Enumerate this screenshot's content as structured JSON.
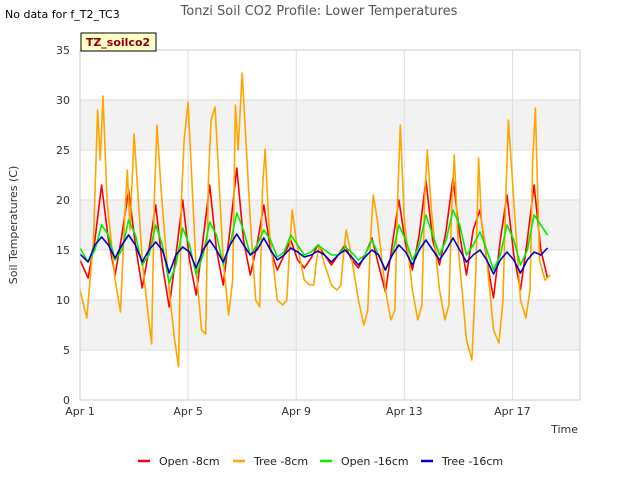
{
  "title": "Tonzi Soil CO2 Profile: Lower Temperatures",
  "nodata_text": "No data for f_T2_TC3",
  "tag_label": "TZ_soilco2",
  "chart_data": {
    "type": "line",
    "xlabel": "Time",
    "ylabel": "Soil Temperatures (C)",
    "xlim": [
      0,
      18.5
    ],
    "ylim": [
      0,
      35
    ],
    "x_ticks": [
      {
        "value": 0,
        "label": "Apr 1"
      },
      {
        "value": 4,
        "label": "Apr 5"
      },
      {
        "value": 8,
        "label": "Apr 9"
      },
      {
        "value": 12,
        "label": "Apr 13"
      },
      {
        "value": 16,
        "label": "Apr 17"
      }
    ],
    "y_ticks": [
      0,
      5,
      10,
      15,
      20,
      25,
      30,
      35
    ],
    "grid": true,
    "legend_position": "bottom",
    "series": [
      {
        "name": "Open -8cm",
        "color": "#ff0000",
        "x": [
          0.0,
          0.3,
          0.55,
          0.8,
          1.05,
          1.3,
          1.55,
          1.8,
          2.05,
          2.3,
          2.55,
          2.8,
          3.05,
          3.3,
          3.55,
          3.8,
          4.05,
          4.3,
          4.55,
          4.8,
          5.05,
          5.3,
          5.55,
          5.8,
          6.05,
          6.3,
          6.55,
          6.8,
          7.05,
          7.3,
          7.55,
          7.8,
          8.05,
          8.3,
          8.55,
          8.8,
          9.05,
          9.3,
          9.55,
          9.8,
          10.05,
          10.3,
          10.55,
          10.8,
          11.05,
          11.3,
          11.55,
          11.8,
          12.05,
          12.3,
          12.55,
          12.8,
          13.05,
          13.3,
          13.55,
          13.8,
          14.05,
          14.3,
          14.55,
          14.8,
          15.05,
          15.3,
          15.55,
          15.8,
          16.05,
          16.3,
          16.55,
          16.8,
          17.05,
          17.3
        ],
        "y": [
          14.0,
          12.2,
          16.0,
          21.5,
          16.0,
          12.5,
          16.5,
          21.0,
          15.5,
          11.2,
          15.0,
          19.5,
          13.5,
          9.3,
          14.5,
          20.0,
          14.0,
          10.5,
          16.0,
          21.5,
          15.0,
          11.5,
          17.0,
          23.2,
          16.0,
          12.5,
          15.5,
          19.5,
          15.0,
          13.0,
          14.5,
          16.0,
          14.0,
          13.2,
          14.2,
          15.5,
          14.5,
          13.5,
          14.5,
          15.5,
          14.0,
          13.2,
          14.5,
          16.2,
          13.5,
          10.8,
          15.5,
          20.0,
          15.5,
          13.0,
          16.5,
          22.0,
          16.0,
          13.5,
          17.0,
          22.2,
          16.5,
          12.5,
          17.0,
          19.0,
          14.0,
          10.2,
          16.0,
          20.5,
          14.5,
          11.0,
          16.0,
          21.5,
          15.0,
          12.2
        ]
      },
      {
        "name": "Tree -8cm",
        "color": "#ffa500",
        "x": [
          0.0,
          0.25,
          0.5,
          0.65,
          0.75,
          0.85,
          1.0,
          1.3,
          1.5,
          1.65,
          1.75,
          1.85,
          2.0,
          2.3,
          2.5,
          2.65,
          2.75,
          2.85,
          3.0,
          3.3,
          3.5,
          3.65,
          3.75,
          3.85,
          4.0,
          4.3,
          4.5,
          4.65,
          4.75,
          4.85,
          5.0,
          5.3,
          5.5,
          5.65,
          5.75,
          5.85,
          6.0,
          6.3,
          6.5,
          6.65,
          6.75,
          6.85,
          7.0,
          7.3,
          7.5,
          7.65,
          7.75,
          7.85,
          8.0,
          8.3,
          8.5,
          8.65,
          8.75,
          8.85,
          9.0,
          9.3,
          9.5,
          9.65,
          9.75,
          9.85,
          10.0,
          10.3,
          10.5,
          10.65,
          10.75,
          10.85,
          11.0,
          11.3,
          11.5,
          11.65,
          11.75,
          11.85,
          12.0,
          12.3,
          12.5,
          12.65,
          12.75,
          12.85,
          13.0,
          13.3,
          13.5,
          13.65,
          13.75,
          13.85,
          14.0,
          14.3,
          14.5,
          14.65,
          14.75,
          14.85,
          15.0,
          15.3,
          15.5,
          15.65,
          15.75,
          15.85,
          16.0,
          16.3,
          16.5,
          16.65,
          16.75,
          16.85,
          17.0,
          17.2,
          17.4
        ],
        "y": [
          11.0,
          8.2,
          16.0,
          29.0,
          24.0,
          30.4,
          20.0,
          12.0,
          8.8,
          18.0,
          23.0,
          17.0,
          26.6,
          14.0,
          9.0,
          5.6,
          20.0,
          27.5,
          21.0,
          11.0,
          6.0,
          3.3,
          20.0,
          26.0,
          29.8,
          13.0,
          7.0,
          6.6,
          22.0,
          28.0,
          29.3,
          14.0,
          8.5,
          12.0,
          29.5,
          25.0,
          32.7,
          18.0,
          10.0,
          9.3,
          21.0,
          25.1,
          17.0,
          10.0,
          9.5,
          10.0,
          15.0,
          19.0,
          16.0,
          12.0,
          11.5,
          11.5,
          14.0,
          15.5,
          14.0,
          11.5,
          11.0,
          11.5,
          14.5,
          17.0,
          15.0,
          10.0,
          7.5,
          9.0,
          16.0,
          20.5,
          18.0,
          11.0,
          8.0,
          9.0,
          20.0,
          27.5,
          18.0,
          11.0,
          8.0,
          9.5,
          20.0,
          25.0,
          19.0,
          11.0,
          8.0,
          9.5,
          19.0,
          24.5,
          15.0,
          6.0,
          4.0,
          13.0,
          24.2,
          18.0,
          15.5,
          7.0,
          5.7,
          10.0,
          20.0,
          28.0,
          22.0,
          10.0,
          8.2,
          11.0,
          24.0,
          29.2,
          14.0,
          12.0,
          12.5
        ]
      },
      {
        "name": "Open -16cm",
        "color": "#00ee00",
        "x": [
          0.0,
          0.3,
          0.55,
          0.8,
          1.05,
          1.3,
          1.55,
          1.8,
          2.05,
          2.3,
          2.55,
          2.8,
          3.05,
          3.3,
          3.55,
          3.8,
          4.05,
          4.3,
          4.55,
          4.8,
          5.05,
          5.3,
          5.55,
          5.8,
          6.05,
          6.3,
          6.55,
          6.8,
          7.05,
          7.3,
          7.55,
          7.8,
          8.05,
          8.3,
          8.55,
          8.8,
          9.05,
          9.3,
          9.55,
          9.8,
          10.05,
          10.3,
          10.55,
          10.8,
          11.05,
          11.3,
          11.55,
          11.8,
          12.05,
          12.3,
          12.55,
          12.8,
          13.05,
          13.3,
          13.55,
          13.8,
          14.05,
          14.3,
          14.55,
          14.8,
          15.05,
          15.3,
          15.55,
          15.8,
          16.05,
          16.3,
          16.55,
          16.8,
          17.05,
          17.3
        ],
        "y": [
          15.2,
          13.8,
          15.0,
          17.5,
          16.5,
          14.0,
          15.0,
          18.0,
          16.5,
          13.5,
          14.5,
          17.5,
          15.5,
          11.7,
          13.5,
          17.2,
          15.5,
          12.5,
          14.5,
          17.8,
          16.5,
          13.5,
          15.5,
          18.7,
          17.0,
          14.5,
          15.5,
          17.0,
          16.0,
          14.3,
          14.8,
          16.5,
          15.5,
          14.5,
          14.8,
          15.5,
          15.0,
          14.5,
          14.5,
          15.3,
          14.8,
          14.0,
          14.5,
          16.0,
          14.5,
          13.0,
          14.5,
          17.5,
          16.0,
          14.0,
          15.5,
          18.5,
          16.5,
          14.5,
          16.0,
          19.0,
          17.5,
          14.5,
          15.5,
          16.8,
          15.0,
          13.0,
          14.5,
          17.5,
          16.0,
          13.5,
          15.0,
          18.5,
          17.5,
          16.5
        ]
      },
      {
        "name": "Tree -16cm",
        "color": "#0000cc",
        "x": [
          0.0,
          0.3,
          0.55,
          0.8,
          1.05,
          1.3,
          1.55,
          1.8,
          2.05,
          2.3,
          2.55,
          2.8,
          3.05,
          3.3,
          3.55,
          3.8,
          4.05,
          4.3,
          4.55,
          4.8,
          5.05,
          5.3,
          5.55,
          5.8,
          6.05,
          6.3,
          6.55,
          6.8,
          7.05,
          7.3,
          7.55,
          7.8,
          8.05,
          8.3,
          8.55,
          8.8,
          9.05,
          9.3,
          9.55,
          9.8,
          10.05,
          10.3,
          10.55,
          10.8,
          11.05,
          11.3,
          11.55,
          11.8,
          12.05,
          12.3,
          12.55,
          12.8,
          13.05,
          13.3,
          13.55,
          13.8,
          14.05,
          14.3,
          14.55,
          14.8,
          15.05,
          15.3,
          15.55,
          15.8,
          16.05,
          16.3,
          16.55,
          16.8,
          17.05,
          17.3
        ],
        "y": [
          14.6,
          13.8,
          15.5,
          16.3,
          15.5,
          14.2,
          15.5,
          16.5,
          15.5,
          13.8,
          15.0,
          15.8,
          15.0,
          12.7,
          14.5,
          15.3,
          14.8,
          13.2,
          15.0,
          16.0,
          15.0,
          13.8,
          15.5,
          16.6,
          15.5,
          14.5,
          15.0,
          16.2,
          15.0,
          14.0,
          14.5,
          15.2,
          14.8,
          14.3,
          14.5,
          14.9,
          14.5,
          13.8,
          14.5,
          15.0,
          14.3,
          13.5,
          14.3,
          15.0,
          14.5,
          13.0,
          14.5,
          15.5,
          14.8,
          13.5,
          15.0,
          16.0,
          15.0,
          14.0,
          15.0,
          16.2,
          15.0,
          13.8,
          14.5,
          15.0,
          14.0,
          12.6,
          14.0,
          14.8,
          14.0,
          12.7,
          14.0,
          14.8,
          14.5,
          15.2
        ]
      }
    ]
  }
}
